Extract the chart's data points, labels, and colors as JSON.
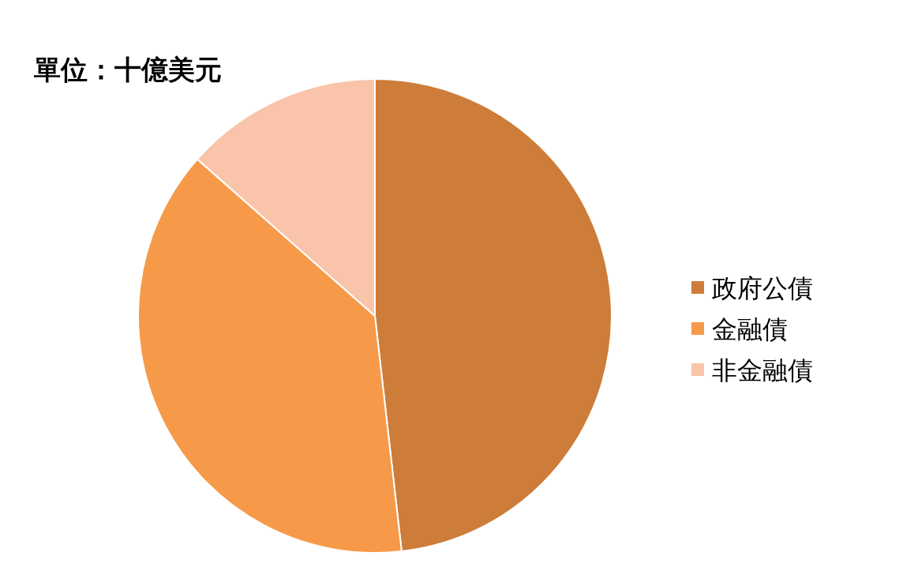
{
  "chart_data": {
    "type": "pie",
    "title": "單位：十億美元",
    "categories": [
      "政府公債",
      "金融債",
      "非金融債"
    ],
    "values": [
      48.2,
      38.3,
      13.5
    ],
    "colors": [
      "#cd7d39",
      "#f69a4a",
      "#f9c4a9"
    ],
    "legend": "right"
  }
}
